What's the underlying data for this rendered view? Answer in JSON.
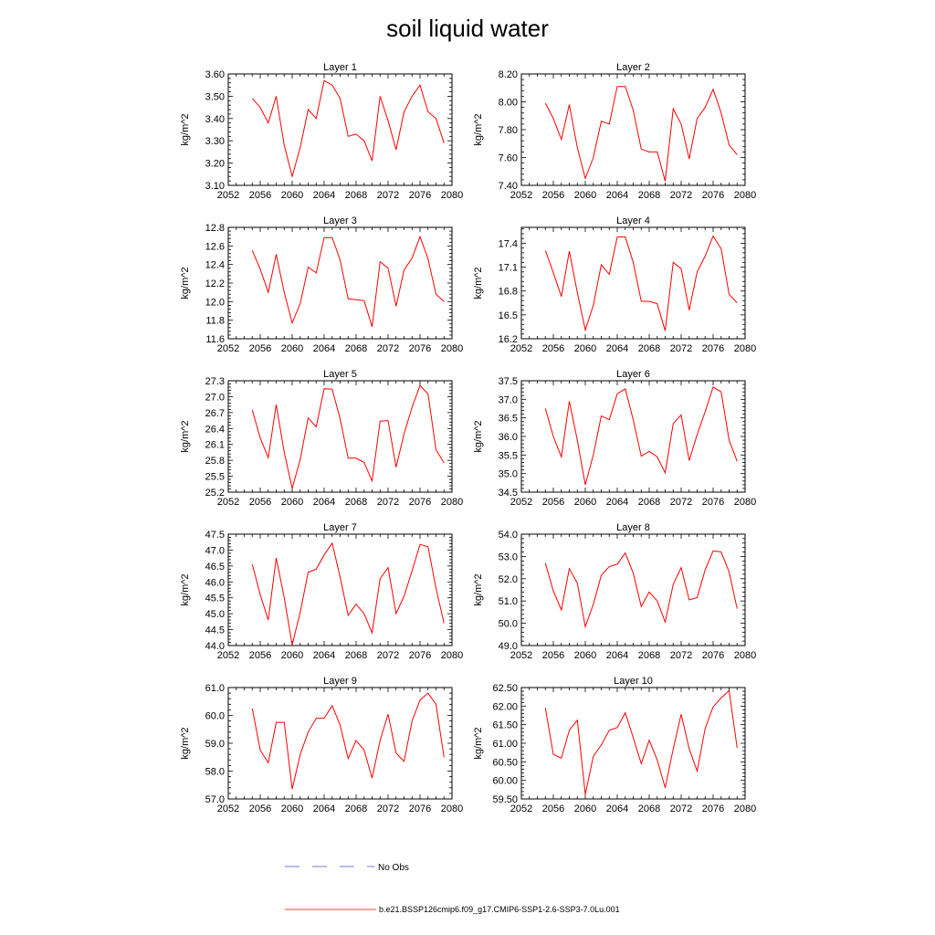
{
  "title": "soil liquid water",
  "colors": {
    "model_line": "#ff0000",
    "obs_line": "#4d4dcc",
    "axis": "#000000"
  },
  "legend": {
    "obs_label": "No Obs",
    "model_label": "b.e21.BSSP126cmip6.f09_g17.CMIP6-SSP1-2.6-SSP3-7.0Lu.001"
  },
  "chart_data": [
    {
      "type": "line",
      "title": "Layer 1",
      "ylabel": "kg/m^2",
      "xlim": [
        2052,
        2080
      ],
      "xticks": [
        "2052",
        "2056",
        "2060",
        "2064",
        "2068",
        "2072",
        "2076",
        "2080"
      ],
      "ylim": [
        3.1,
        3.6
      ],
      "yticks": [
        "3.10",
        "3.20",
        "3.30",
        "3.40",
        "3.50",
        "3.60"
      ],
      "series": [
        {
          "x": [
            2055,
            2056,
            2057,
            2058,
            2059,
            2060,
            2061,
            2062,
            2063,
            2064,
            2065,
            2066,
            2067,
            2068,
            2069,
            2070,
            2071,
            2072,
            2073,
            2074,
            2075,
            2076,
            2077,
            2078,
            2079
          ],
          "values": [
            3.49,
            3.45,
            3.38,
            3.5,
            3.28,
            3.14,
            3.27,
            3.44,
            3.4,
            3.57,
            3.55,
            3.49,
            3.32,
            3.33,
            3.3,
            3.21,
            3.5,
            3.39,
            3.26,
            3.43,
            3.5,
            3.55,
            3.43,
            3.4,
            3.29
          ]
        }
      ]
    },
    {
      "type": "line",
      "title": "Layer 2",
      "ylabel": "kg/m^2",
      "xlim": [
        2052,
        2080
      ],
      "xticks": [
        "2052",
        "2056",
        "2060",
        "2064",
        "2068",
        "2072",
        "2076",
        "2080"
      ],
      "ylim": [
        7.4,
        8.2
      ],
      "yticks": [
        "7.40",
        "7.60",
        "7.80",
        "8.00",
        "8.20"
      ],
      "series": [
        {
          "x": [
            2055,
            2056,
            2057,
            2058,
            2059,
            2060,
            2061,
            2062,
            2063,
            2064,
            2065,
            2066,
            2067,
            2068,
            2069,
            2070,
            2071,
            2072,
            2073,
            2074,
            2075,
            2076,
            2077,
            2078,
            2079
          ],
          "values": [
            7.99,
            7.88,
            7.73,
            7.98,
            7.67,
            7.45,
            7.6,
            7.86,
            7.84,
            8.11,
            8.11,
            7.94,
            7.66,
            7.64,
            7.64,
            7.43,
            7.95,
            7.84,
            7.59,
            7.88,
            7.96,
            8.09,
            7.92,
            7.69,
            7.62
          ]
        }
      ]
    },
    {
      "type": "line",
      "title": "Layer 3",
      "ylabel": "kg/m^2",
      "xlim": [
        2052,
        2080
      ],
      "xticks": [
        "2052",
        "2056",
        "2060",
        "2064",
        "2068",
        "2072",
        "2076",
        "2080"
      ],
      "ylim": [
        11.6,
        12.8
      ],
      "yticks": [
        "11.6",
        "11.8",
        "12.0",
        "12.2",
        "12.4",
        "12.6",
        "12.8"
      ],
      "series": [
        {
          "x": [
            2055,
            2056,
            2057,
            2058,
            2059,
            2060,
            2061,
            2062,
            2063,
            2064,
            2065,
            2066,
            2067,
            2068,
            2069,
            2070,
            2071,
            2072,
            2073,
            2074,
            2075,
            2076,
            2077,
            2078,
            2079
          ],
          "values": [
            12.55,
            12.35,
            12.1,
            12.51,
            12.1,
            11.77,
            11.98,
            12.37,
            12.31,
            12.69,
            12.69,
            12.45,
            12.03,
            12.02,
            12.01,
            11.73,
            12.43,
            12.36,
            11.95,
            12.34,
            12.47,
            12.7,
            12.46,
            12.08,
            12.0
          ]
        }
      ]
    },
    {
      "type": "line",
      "title": "Layer 4",
      "ylabel": "kg/m^2",
      "xlim": [
        2052,
        2080
      ],
      "xticks": [
        "2052",
        "2056",
        "2060",
        "2064",
        "2068",
        "2072",
        "2076",
        "2080"
      ],
      "ylim": [
        16.2,
        17.6
      ],
      "yticks": [
        "16.2",
        "16.5",
        "16.8",
        "17.1",
        "17.4"
      ],
      "series": [
        {
          "x": [
            2055,
            2056,
            2057,
            2058,
            2059,
            2060,
            2061,
            2062,
            2063,
            2064,
            2065,
            2066,
            2067,
            2068,
            2069,
            2070,
            2071,
            2072,
            2073,
            2074,
            2075,
            2076,
            2077,
            2078,
            2079
          ],
          "values": [
            17.31,
            17.03,
            16.73,
            17.3,
            16.78,
            16.31,
            16.62,
            17.13,
            17.01,
            17.48,
            17.48,
            17.16,
            16.67,
            16.67,
            16.64,
            16.3,
            17.16,
            17.08,
            16.56,
            17.04,
            17.24,
            17.49,
            17.33,
            16.76,
            16.65
          ]
        }
      ]
    },
    {
      "type": "line",
      "title": "Layer 5",
      "ylabel": "kg/m^2",
      "xlim": [
        2052,
        2080
      ],
      "xticks": [
        "2052",
        "2056",
        "2060",
        "2064",
        "2068",
        "2072",
        "2076",
        "2080"
      ],
      "ylim": [
        25.2,
        27.3
      ],
      "yticks": [
        "25.2",
        "25.5",
        "25.8",
        "26.1",
        "26.4",
        "26.7",
        "27.0",
        "27.3"
      ],
      "series": [
        {
          "x": [
            2055,
            2056,
            2057,
            2058,
            2059,
            2060,
            2061,
            2062,
            2063,
            2064,
            2065,
            2066,
            2067,
            2068,
            2069,
            2070,
            2071,
            2072,
            2073,
            2074,
            2075,
            2076,
            2077,
            2078,
            2079
          ],
          "values": [
            26.75,
            26.22,
            25.85,
            26.85,
            25.95,
            25.27,
            25.82,
            26.6,
            26.43,
            27.15,
            27.14,
            26.58,
            25.84,
            25.84,
            25.76,
            25.41,
            26.54,
            26.55,
            25.67,
            26.3,
            26.8,
            27.21,
            27.05,
            26.0,
            25.75
          ]
        }
      ]
    },
    {
      "type": "line",
      "title": "Layer 6",
      "ylabel": "kg/m^2",
      "xlim": [
        2052,
        2080
      ],
      "xticks": [
        "2052",
        "2056",
        "2060",
        "2064",
        "2068",
        "2072",
        "2076",
        "2080"
      ],
      "ylim": [
        34.5,
        37.5
      ],
      "yticks": [
        "34.5",
        "35.0",
        "35.5",
        "36.0",
        "36.5",
        "37.0",
        "37.5"
      ],
      "series": [
        {
          "x": [
            2055,
            2056,
            2057,
            2058,
            2059,
            2060,
            2061,
            2062,
            2063,
            2064,
            2065,
            2066,
            2067,
            2068,
            2069,
            2070,
            2071,
            2072,
            2073,
            2074,
            2075,
            2076,
            2077,
            2078,
            2079
          ],
          "values": [
            36.75,
            36.0,
            35.45,
            36.95,
            35.9,
            34.7,
            35.5,
            36.55,
            36.45,
            37.15,
            37.28,
            36.45,
            35.47,
            35.6,
            35.45,
            35.02,
            36.35,
            36.58,
            35.35,
            36.05,
            36.67,
            37.33,
            37.2,
            35.9,
            35.33
          ]
        }
      ]
    },
    {
      "type": "line",
      "title": "Layer 7",
      "ylabel": "kg/m^2",
      "xlim": [
        2052,
        2080
      ],
      "xticks": [
        "2052",
        "2056",
        "2060",
        "2064",
        "2068",
        "2072",
        "2076",
        "2080"
      ],
      "ylim": [
        44.0,
        47.5
      ],
      "yticks": [
        "44.0",
        "44.5",
        "45.0",
        "45.5",
        "46.0",
        "46.5",
        "47.0",
        "47.5"
      ],
      "series": [
        {
          "x": [
            2055,
            2056,
            2057,
            2058,
            2059,
            2060,
            2061,
            2062,
            2063,
            2064,
            2065,
            2066,
            2067,
            2068,
            2069,
            2070,
            2071,
            2072,
            2073,
            2074,
            2075,
            2076,
            2077,
            2078,
            2079
          ],
          "values": [
            46.55,
            45.6,
            44.8,
            46.75,
            45.5,
            44.02,
            45.05,
            46.3,
            46.4,
            46.85,
            47.22,
            46.15,
            44.95,
            45.3,
            45.0,
            44.4,
            46.1,
            46.45,
            45.0,
            45.55,
            46.35,
            47.18,
            47.1,
            45.8,
            44.7
          ]
        }
      ]
    },
    {
      "type": "line",
      "title": "Layer 8",
      "ylabel": "kg/m^2",
      "xlim": [
        2052,
        2080
      ],
      "xticks": [
        "2052",
        "2056",
        "2060",
        "2064",
        "2068",
        "2072",
        "2076",
        "2080"
      ],
      "ylim": [
        49.0,
        54.0
      ],
      "yticks": [
        "49.0",
        "50.0",
        "51.0",
        "52.0",
        "53.0",
        "54.0"
      ],
      "series": [
        {
          "x": [
            2055,
            2056,
            2057,
            2058,
            2059,
            2060,
            2061,
            2062,
            2063,
            2064,
            2065,
            2066,
            2067,
            2068,
            2069,
            2070,
            2071,
            2072,
            2073,
            2074,
            2075,
            2076,
            2077,
            2078,
            2079
          ],
          "values": [
            52.7,
            51.45,
            50.6,
            52.45,
            51.8,
            49.85,
            50.85,
            52.15,
            52.55,
            52.65,
            53.15,
            52.25,
            50.75,
            51.4,
            51.0,
            50.05,
            51.75,
            52.5,
            51.05,
            51.15,
            52.4,
            53.25,
            53.2,
            52.3,
            50.65
          ]
        }
      ]
    },
    {
      "type": "line",
      "title": "Layer 9",
      "ylabel": "kg/m^2",
      "xlim": [
        2052,
        2080
      ],
      "xticks": [
        "2052",
        "2056",
        "2060",
        "2064",
        "2068",
        "2072",
        "2076",
        "2080"
      ],
      "ylim": [
        57.0,
        61.0
      ],
      "yticks": [
        "57.0",
        "58.0",
        "59.0",
        "60.0",
        "61.0"
      ],
      "series": [
        {
          "x": [
            2055,
            2056,
            2057,
            2058,
            2059,
            2060,
            2061,
            2062,
            2063,
            2064,
            2065,
            2066,
            2067,
            2068,
            2069,
            2070,
            2071,
            2072,
            2073,
            2074,
            2075,
            2076,
            2077,
            2078,
            2079
          ],
          "values": [
            60.25,
            58.75,
            58.3,
            59.75,
            59.75,
            57.35,
            58.6,
            59.4,
            59.9,
            59.9,
            60.35,
            59.65,
            58.45,
            59.1,
            58.75,
            57.75,
            59.1,
            60.05,
            58.65,
            58.35,
            59.8,
            60.55,
            60.8,
            60.4,
            58.5
          ]
        }
      ]
    },
    {
      "type": "line",
      "title": "Layer 10",
      "ylabel": "kg/m^2",
      "xlim": [
        2052,
        2080
      ],
      "xticks": [
        "2052",
        "2056",
        "2060",
        "2064",
        "2068",
        "2072",
        "2076",
        "2080"
      ],
      "ylim": [
        59.5,
        62.5
      ],
      "yticks": [
        "59.50",
        "60.00",
        "60.50",
        "61.00",
        "61.50",
        "62.00",
        "62.50"
      ],
      "series": [
        {
          "x": [
            2055,
            2056,
            2057,
            2058,
            2059,
            2060,
            2061,
            2062,
            2063,
            2064,
            2065,
            2066,
            2067,
            2068,
            2069,
            2070,
            2071,
            2072,
            2073,
            2074,
            2075,
            2076,
            2077,
            2078,
            2079
          ],
          "values": [
            61.95,
            60.7,
            60.6,
            61.35,
            61.62,
            59.62,
            60.65,
            60.95,
            61.35,
            61.42,
            61.82,
            61.15,
            60.45,
            61.08,
            60.55,
            59.8,
            60.85,
            61.78,
            60.85,
            60.25,
            61.4,
            61.98,
            62.22,
            62.42,
            60.88
          ]
        }
      ]
    }
  ]
}
